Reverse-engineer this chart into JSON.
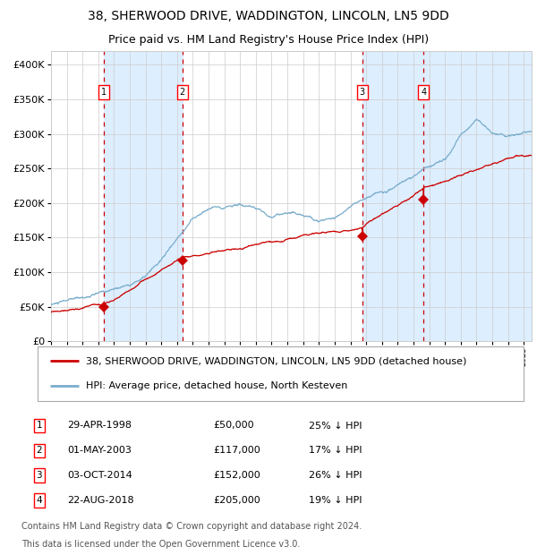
{
  "title": "38, SHERWOOD DRIVE, WADDINGTON, LINCOLN, LN5 9DD",
  "subtitle": "Price paid vs. HM Land Registry's House Price Index (HPI)",
  "legend_property": "38, SHERWOOD DRIVE, WADDINGTON, LINCOLN, LN5 9DD (detached house)",
  "legend_hpi": "HPI: Average price, detached house, North Kesteven",
  "footer_line1": "Contains HM Land Registry data © Crown copyright and database right 2024.",
  "footer_line2": "This data is licensed under the Open Government Licence v3.0.",
  "transactions": [
    {
      "num": 1,
      "date": "29-APR-1998",
      "price": 50000,
      "hpi_diff": "25% ↓ HPI",
      "x_year": 1998.33
    },
    {
      "num": 2,
      "date": "01-MAY-2003",
      "price": 117000,
      "hpi_diff": "17% ↓ HPI",
      "x_year": 2003.33
    },
    {
      "num": 3,
      "date": "03-OCT-2014",
      "price": 152000,
      "hpi_diff": "26% ↓ HPI",
      "x_year": 2014.75
    },
    {
      "num": 4,
      "date": "22-AUG-2018",
      "price": 205000,
      "hpi_diff": "19% ↓ HPI",
      "x_year": 2018.65
    }
  ],
  "ylim": [
    0,
    420000
  ],
  "xlim_start": 1995.0,
  "xlim_end": 2025.5,
  "property_color": "#cc0000",
  "hpi_color": "#7aadcc",
  "vline_color": "#cc0000",
  "shade_color": "#ddeeff",
  "grid_color": "#cccccc",
  "title_fontsize": 10,
  "subtitle_fontsize": 9,
  "axis_fontsize": 8,
  "legend_fontsize": 8,
  "table_fontsize": 8,
  "footer_fontsize": 7
}
